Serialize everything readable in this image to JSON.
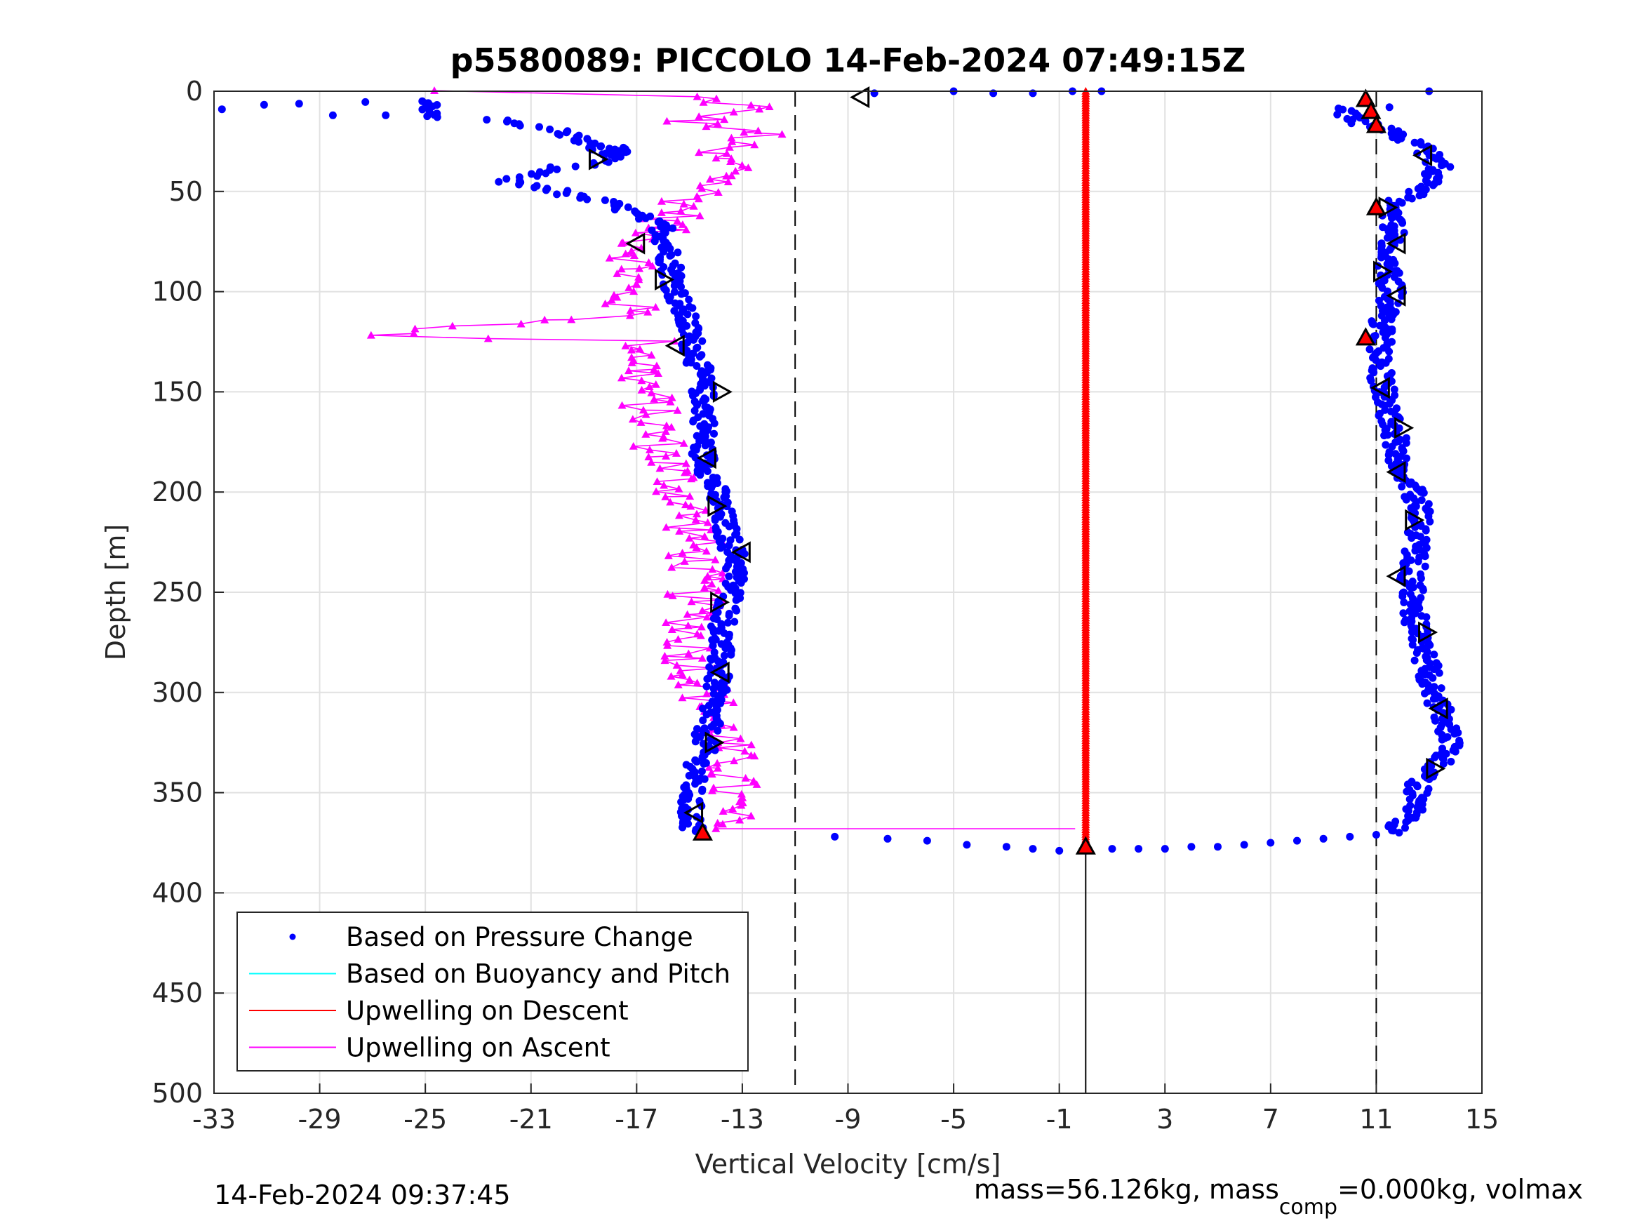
{
  "title": "p5580089: PICCOLO 14-Feb-2024 07:49:15Z",
  "footer": {
    "timestamp": "14-Feb-2024 09:37:45",
    "mass_text": "mass=56.126kg, mass",
    "mass_sub": "comp",
    "mass_tail": "=0.000kg, volmax"
  },
  "colors": {
    "pressure": "#0000ff",
    "buoyancy": "#00ffff",
    "descent": "#ff0000",
    "ascent": "#ff00ff",
    "grid": "#e1e1e1",
    "axis": "#262626"
  },
  "chart_data": {
    "type": "scatter",
    "title": "p5580089: PICCOLO 14-Feb-2024 07:49:15Z",
    "xlabel": "Vertical Velocity [cm/s]",
    "ylabel": "Depth [m]",
    "xlim": [
      -33,
      15
    ],
    "ylim": [
      0,
      500
    ],
    "y_reversed": true,
    "grid": true,
    "xticks": [
      -33,
      -29,
      -25,
      -21,
      -17,
      -13,
      -9,
      -5,
      -1,
      3,
      7,
      11,
      15
    ],
    "yticks": [
      0,
      50,
      100,
      150,
      200,
      250,
      300,
      350,
      400,
      450,
      500
    ],
    "legend_position": "bottom-left",
    "reference_lines": [
      {
        "x": -11,
        "style": "dashed"
      },
      {
        "x": 11,
        "style": "dashed"
      },
      {
        "x": 0,
        "style": "solid",
        "from_y": 378,
        "to_y": 500
      }
    ],
    "series": [
      {
        "name": "Based on Pressure Change",
        "marker": "dot",
        "descent_profile": [
          [
            -31.5,
            7
          ],
          [
            -25,
            5
          ],
          [
            -24.5,
            13
          ],
          [
            -22.5,
            14
          ],
          [
            -21,
            18
          ],
          [
            -20,
            19
          ],
          [
            -19,
            25
          ],
          [
            -18,
            32
          ],
          [
            -17.5,
            28
          ],
          [
            -18.5,
            36
          ],
          [
            -20,
            38
          ],
          [
            -22,
            45
          ],
          [
            -20.5,
            48
          ],
          [
            -19.5,
            52
          ],
          [
            -18,
            56
          ],
          [
            -17,
            62
          ],
          [
            -16,
            68
          ],
          [
            -15.8,
            80
          ],
          [
            -15.5,
            100
          ],
          [
            -15,
            120
          ],
          [
            -14.6,
            140
          ],
          [
            -14.4,
            160
          ],
          [
            -14.5,
            180
          ],
          [
            -14,
            200
          ],
          [
            -13.6,
            220
          ],
          [
            -13.2,
            235
          ],
          [
            -13.4,
            250
          ],
          [
            -13.8,
            270
          ],
          [
            -13.9,
            290
          ],
          [
            -14.2,
            310
          ],
          [
            -14.5,
            330
          ],
          [
            -14.9,
            345
          ],
          [
            -15,
            360
          ],
          [
            -14.8,
            370
          ]
        ],
        "ascent_profile": [
          [
            11.5,
            370
          ],
          [
            12.4,
            360
          ],
          [
            12.6,
            345
          ],
          [
            13.8,
            330
          ],
          [
            13.6,
            315
          ],
          [
            13.2,
            300
          ],
          [
            12.9,
            285
          ],
          [
            12.5,
            265
          ],
          [
            12.3,
            245
          ],
          [
            12.6,
            225
          ],
          [
            12.7,
            210
          ],
          [
            12.2,
            195
          ],
          [
            11.8,
            180
          ],
          [
            11.6,
            165
          ],
          [
            11.3,
            150
          ],
          [
            11.1,
            135
          ],
          [
            11.2,
            115
          ],
          [
            11.6,
            100
          ],
          [
            11.4,
            85
          ],
          [
            11.7,
            70
          ],
          [
            11.3,
            58
          ],
          [
            12.6,
            50
          ],
          [
            13.4,
            38
          ],
          [
            12.8,
            28
          ],
          [
            11.5,
            20
          ],
          [
            10.3,
            15
          ],
          [
            9.5,
            8
          ]
        ],
        "surface_points": [
          [
            -32.7,
            9
          ],
          [
            -28.5,
            12
          ],
          [
            -26.5,
            12
          ],
          [
            -25,
            6
          ],
          [
            -8,
            1
          ],
          [
            -5,
            0
          ],
          [
            -3.5,
            1
          ],
          [
            -2,
            1
          ],
          [
            -0.5,
            0
          ],
          [
            0.6,
            0
          ],
          [
            11.5,
            8
          ],
          [
            13,
            0
          ]
        ],
        "bottom_transition": [
          [
            -9.5,
            372
          ],
          [
            -7.5,
            373
          ],
          [
            -6,
            374
          ],
          [
            -4.5,
            376
          ],
          [
            -3,
            377
          ],
          [
            -2,
            378
          ],
          [
            -1,
            379
          ],
          [
            0,
            379
          ],
          [
            1,
            378
          ],
          [
            2,
            378
          ],
          [
            3,
            378
          ],
          [
            4,
            377
          ],
          [
            5,
            377
          ],
          [
            6,
            376
          ],
          [
            7,
            375
          ],
          [
            8,
            374
          ],
          [
            9,
            373
          ],
          [
            10,
            372
          ],
          [
            11,
            371
          ]
        ]
      },
      {
        "name": "Based on Buoyancy and Pitch",
        "marker": "line",
        "values": []
      },
      {
        "name": "Upwelling on Descent",
        "marker": "line-triangle",
        "x_constant": 0,
        "y_range": [
          0,
          378
        ]
      },
      {
        "name": "Upwelling on Ascent",
        "marker": "line-triangle",
        "profile": [
          [
            -25,
            0
          ],
          [
            -15,
            2
          ],
          [
            -12.5,
            8
          ],
          [
            -15,
            15
          ],
          [
            -12.2,
            22
          ],
          [
            -14.5,
            30
          ],
          [
            -13,
            40
          ],
          [
            -14.8,
            52
          ],
          [
            -15.5,
            62
          ],
          [
            -16.5,
            72
          ],
          [
            -17,
            85
          ],
          [
            -17.5,
            100
          ],
          [
            -17.2,
            112
          ],
          [
            -27.5,
            122
          ],
          [
            -16.5,
            125
          ],
          [
            -16.8,
            140
          ],
          [
            -16.5,
            160
          ],
          [
            -16,
            180
          ],
          [
            -15.3,
            200
          ],
          [
            -14.8,
            220
          ],
          [
            -14.8,
            240
          ],
          [
            -14.8,
            260
          ],
          [
            -15,
            280
          ],
          [
            -14.4,
            300
          ],
          [
            -13.8,
            320
          ],
          [
            -13.4,
            340
          ],
          [
            -13.6,
            360
          ],
          [
            -14,
            368
          ],
          [
            -0.4,
            368
          ]
        ]
      }
    ],
    "markers": {
      "left_triangles": [
        [
          -8.5,
          3
        ],
        [
          -17,
          76
        ],
        [
          -15.5,
          127
        ],
        [
          -14.3,
          183
        ],
        [
          -13.8,
          290
        ],
        [
          -14.8,
          360
        ],
        [
          12.8,
          32
        ],
        [
          11.8,
          76
        ],
        [
          11.8,
          102
        ],
        [
          11.2,
          148
        ],
        [
          11.8,
          190
        ],
        [
          11.8,
          242
        ],
        [
          13.4,
          308
        ],
        [
          -13,
          230
        ]
      ],
      "right_triangles": [
        [
          -18.5,
          34
        ],
        [
          -16,
          94
        ],
        [
          -13.8,
          150
        ],
        [
          -14,
          207
        ],
        [
          -13.9,
          255
        ],
        [
          -14.1,
          325
        ],
        [
          11.2,
          90
        ],
        [
          12,
          168
        ],
        [
          12.4,
          214
        ],
        [
          12.9,
          270
        ],
        [
          13.2,
          338
        ],
        [
          11.4,
          58
        ]
      ],
      "red_triangles": [
        [
          10.6,
          4
        ],
        [
          10.8,
          10
        ],
        [
          11,
          17
        ],
        [
          11,
          58
        ],
        [
          10.6,
          123
        ],
        [
          -14.5,
          370
        ],
        [
          0,
          377
        ]
      ]
    }
  }
}
